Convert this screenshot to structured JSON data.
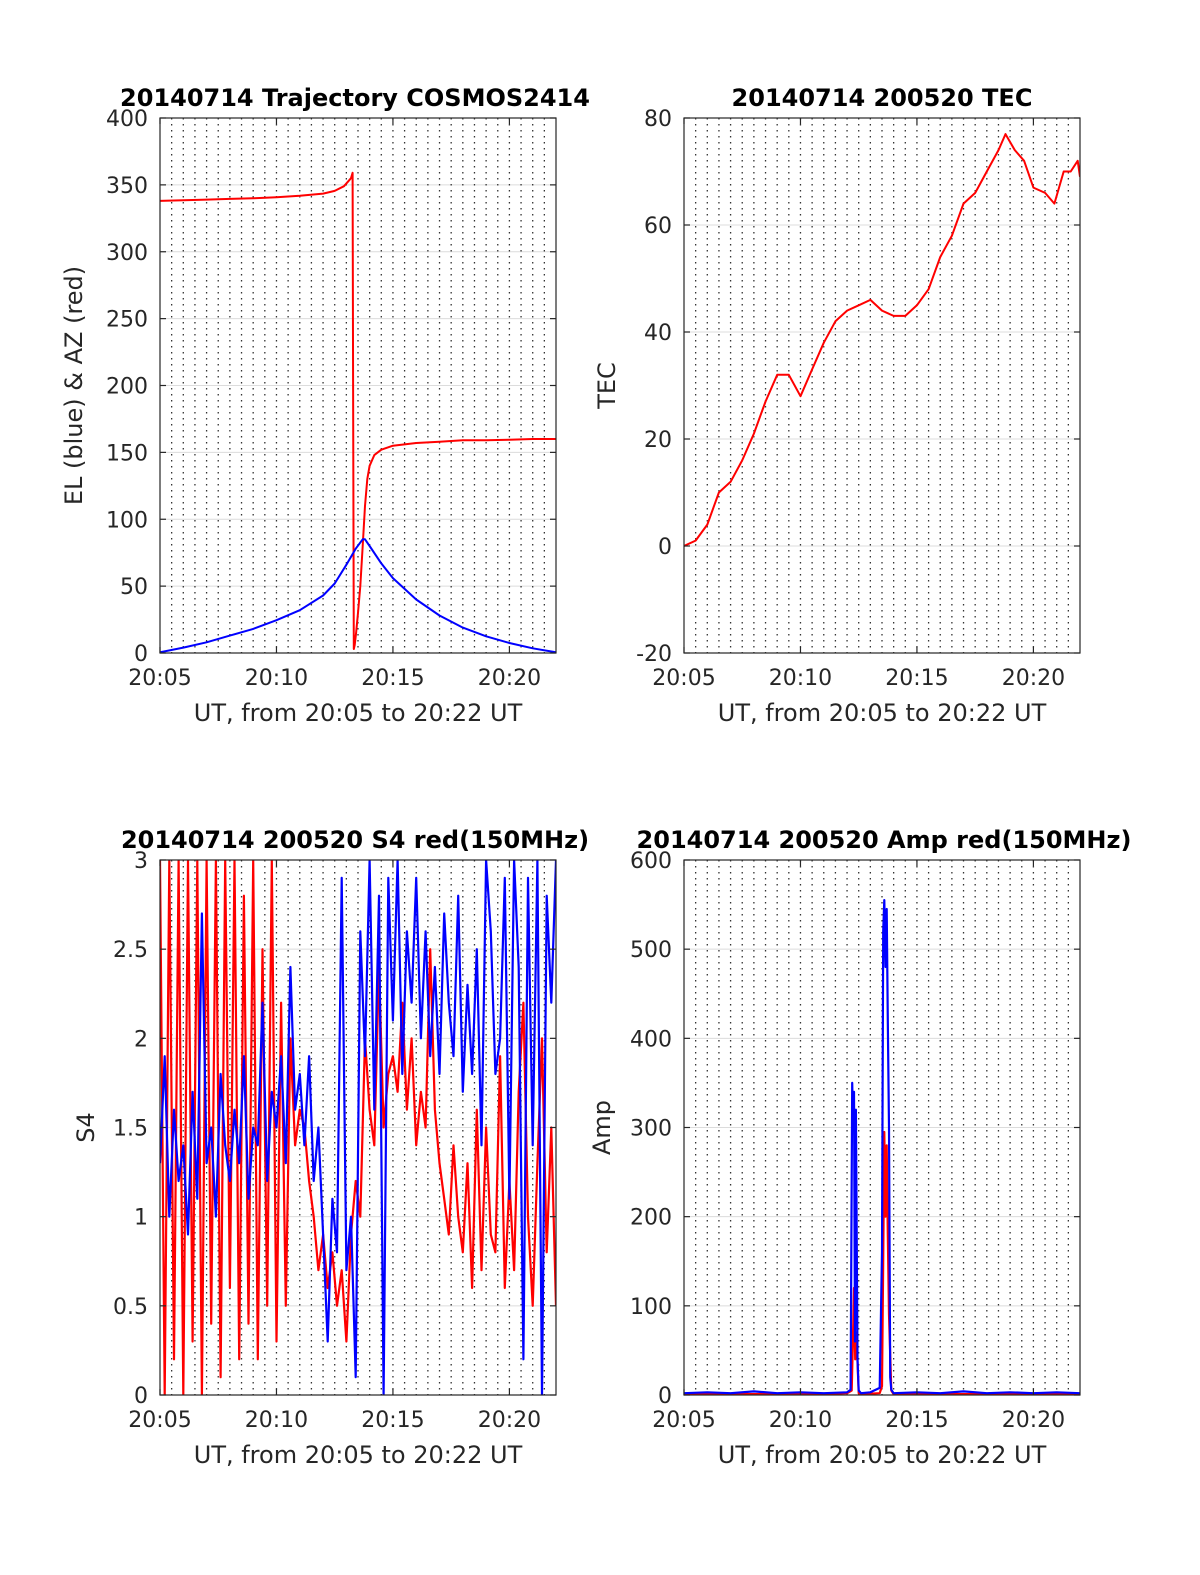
{
  "chart_data": [
    {
      "id": "trajectory",
      "type": "line",
      "title": "20140714 Trajectory COSMOS2414",
      "xlabel": "UT, from 20:05 to 20:22 UT",
      "ylabel": "EL (blue) & AZ (red)",
      "xlim": [
        5,
        22
      ],
      "ylim": [
        0,
        400
      ],
      "x_ticks": [
        5,
        10,
        15,
        20
      ],
      "x_tick_labels": [
        "20:05",
        "20:10",
        "20:15",
        "20:20"
      ],
      "y_ticks": [
        0,
        50,
        100,
        150,
        200,
        250,
        300,
        350,
        400
      ],
      "y_tick_labels": [
        "0",
        "50",
        "100",
        "150",
        "200",
        "250",
        "300",
        "350",
        "400"
      ],
      "grid": "dotted vertical every 30 s, horizontal at y ticks",
      "series": [
        {
          "name": "AZ",
          "color": "#ff0000",
          "x": [
            5.0,
            6.0,
            7.0,
            8.0,
            9.0,
            10.0,
            11.0,
            12.0,
            12.5,
            12.9,
            13.2,
            13.27,
            13.29,
            13.32,
            13.36,
            13.42,
            13.5,
            13.6,
            13.7,
            13.8,
            13.9,
            14.0,
            14.2,
            14.5,
            15.0,
            16.0,
            17.0,
            18.0,
            19.0,
            20.0,
            21.0,
            22.0
          ],
          "y": [
            338,
            338.5,
            339,
            339.5,
            340,
            340.8,
            341.8,
            343.5,
            345.5,
            349,
            355,
            359,
            200,
            3,
            6,
            15,
            30,
            50,
            80,
            110,
            130,
            140,
            148,
            152,
            155,
            157,
            158,
            159,
            159,
            159.5,
            160,
            160
          ]
        },
        {
          "name": "EL",
          "color": "#0000ff",
          "x": [
            5.0,
            6.0,
            7.0,
            8.0,
            9.0,
            10.0,
            11.0,
            12.0,
            12.5,
            13.0,
            13.4,
            13.7,
            13.8,
            14.0,
            14.5,
            15.0,
            16.0,
            17.0,
            18.0,
            19.0,
            20.0,
            21.0,
            22.0
          ],
          "y": [
            0.5,
            4,
            8,
            13,
            18,
            24.5,
            32,
            43,
            52,
            66,
            78,
            85,
            85,
            80,
            67,
            56,
            40,
            28,
            19,
            12.5,
            7.5,
            3.5,
            0.5
          ]
        }
      ]
    },
    {
      "id": "tec",
      "type": "line",
      "title": "20140714 200520 TEC",
      "xlabel": "UT, from 20:05 to 20:22 UT",
      "ylabel": "TEC",
      "xlim": [
        5,
        22
      ],
      "ylim": [
        -20,
        80
      ],
      "x_ticks": [
        5,
        10,
        15,
        20
      ],
      "x_tick_labels": [
        "20:05",
        "20:10",
        "20:15",
        "20:20"
      ],
      "y_ticks": [
        -20,
        0,
        20,
        40,
        60,
        80
      ],
      "y_tick_labels": [
        "-20",
        "0",
        "20",
        "40",
        "60",
        "80"
      ],
      "grid": "dotted vertical every 30 s, horizontal at y ticks",
      "series": [
        {
          "name": "TEC",
          "color": "#ff0000",
          "x": [
            5.0,
            5.5,
            6.0,
            6.5,
            7.0,
            7.5,
            8.0,
            8.5,
            9.0,
            9.5,
            10.0,
            10.5,
            11.0,
            11.5,
            12.0,
            12.5,
            13.0,
            13.5,
            14.0,
            14.5,
            15.0,
            15.5,
            16.0,
            16.5,
            17.0,
            17.5,
            18.0,
            18.5,
            18.8,
            19.2,
            19.6,
            20.0,
            20.5,
            20.9,
            21.3,
            21.6,
            21.9,
            22.0
          ],
          "y": [
            0,
            1,
            4,
            10,
            12,
            16,
            21,
            27,
            32,
            32,
            28,
            33,
            38,
            42,
            44,
            45,
            46,
            44,
            43,
            43,
            45,
            48,
            54,
            58,
            64,
            66,
            70,
            74,
            77,
            74,
            72,
            67,
            66,
            64,
            70,
            70,
            72,
            69
          ]
        }
      ]
    },
    {
      "id": "s4",
      "type": "line",
      "title": "20140714 200520 S4 red(150MHz)",
      "xlabel": "UT, from 20:05 to 20:22 UT",
      "ylabel": "S4",
      "xlim": [
        5,
        22
      ],
      "ylim": [
        0,
        3
      ],
      "x_ticks": [
        5,
        10,
        15,
        20
      ],
      "x_tick_labels": [
        "20:05",
        "20:10",
        "20:15",
        "20:20"
      ],
      "y_ticks": [
        0,
        0.5,
        1,
        1.5,
        2,
        2.5,
        3
      ],
      "y_tick_labels": [
        "0",
        "0.5",
        "1",
        "1.5",
        "2",
        "2.5",
        "3"
      ],
      "grid": "dotted vertical every 30 s, horizontal at y ticks",
      "series": [
        {
          "name": "red(150MHz)",
          "color": "#ff0000",
          "x": [
            5.0,
            5.2,
            5.4,
            5.6,
            5.8,
            6.0,
            6.2,
            6.4,
            6.6,
            6.8,
            7.0,
            7.2,
            7.4,
            7.6,
            7.8,
            8.0,
            8.2,
            8.4,
            8.6,
            8.8,
            9.0,
            9.2,
            9.4,
            9.6,
            9.8,
            10.0,
            10.2,
            10.4,
            10.6,
            10.8,
            11.0,
            11.2,
            11.4,
            11.6,
            11.8,
            12.0,
            12.2,
            12.4,
            12.6,
            12.8,
            13.0,
            13.2,
            13.4,
            13.6,
            13.8,
            14.0,
            14.2,
            14.4,
            14.6,
            14.8,
            15.0,
            15.2,
            15.4,
            15.6,
            15.8,
            16.0,
            16.2,
            16.4,
            16.6,
            16.8,
            17.0,
            17.2,
            17.4,
            17.6,
            17.8,
            18.0,
            18.2,
            18.4,
            18.6,
            18.8,
            19.0,
            19.2,
            19.4,
            19.6,
            19.8,
            20.0,
            20.2,
            20.4,
            20.6,
            20.8,
            21.0,
            21.2,
            21.4,
            21.6,
            21.8,
            22.0
          ],
          "y": [
            3,
            0,
            3,
            0.2,
            3,
            0,
            3,
            0.3,
            3,
            0,
            3,
            0.4,
            3,
            0.1,
            3,
            0.6,
            3,
            0.2,
            2.8,
            0.4,
            3,
            0.2,
            2.5,
            0.5,
            3,
            0.3,
            2.2,
            0.5,
            2.0,
            1.4,
            1.6,
            1.5,
            1.2,
            1.0,
            0.7,
            0.9,
            0.6,
            0.8,
            0.5,
            0.7,
            0.3,
            0.9,
            1.2,
            1.0,
            2.0,
            1.6,
            1.4,
            2.4,
            1.5,
            1.8,
            1.9,
            1.7,
            2.2,
            1.6,
            2.0,
            1.4,
            1.7,
            1.5,
            2.5,
            1.6,
            1.3,
            1.1,
            0.9,
            1.4,
            1.0,
            0.8,
            1.3,
            0.6,
            1.6,
            0.7,
            1.5,
            0.9,
            0.8,
            1.9,
            0.6,
            1.2,
            0.7,
            1.7,
            2.2,
            1.0,
            0.5,
            1.3,
            2.0,
            0.8,
            1.5,
            0.5
          ]
        },
        {
          "name": "blue",
          "color": "#0000ff",
          "x": [
            5.0,
            5.2,
            5.4,
            5.6,
            5.8,
            6.0,
            6.2,
            6.4,
            6.6,
            6.8,
            7.0,
            7.2,
            7.4,
            7.6,
            7.8,
            8.0,
            8.2,
            8.4,
            8.6,
            8.8,
            9.0,
            9.2,
            9.4,
            9.6,
            9.8,
            10.0,
            10.2,
            10.4,
            10.6,
            10.8,
            11.0,
            11.2,
            11.4,
            11.6,
            11.8,
            12.0,
            12.2,
            12.4,
            12.6,
            12.8,
            13.0,
            13.2,
            13.4,
            13.6,
            13.8,
            14.0,
            14.2,
            14.4,
            14.6,
            14.8,
            15.0,
            15.2,
            15.4,
            15.6,
            15.8,
            16.0,
            16.2,
            16.4,
            16.6,
            16.8,
            17.0,
            17.2,
            17.4,
            17.6,
            17.8,
            18.0,
            18.2,
            18.4,
            18.6,
            18.8,
            19.0,
            19.2,
            19.4,
            19.6,
            19.8,
            20.0,
            20.2,
            20.4,
            20.6,
            20.8,
            21.0,
            21.2,
            21.4,
            21.6,
            21.8,
            22.0
          ],
          "y": [
            1.3,
            1.9,
            1.0,
            1.6,
            1.2,
            1.4,
            0.9,
            1.7,
            1.1,
            2.7,
            1.3,
            1.5,
            1.0,
            1.8,
            1.4,
            1.2,
            1.6,
            1.3,
            1.9,
            1.1,
            1.5,
            1.4,
            2.2,
            1.2,
            1.7,
            1.5,
            1.9,
            1.3,
            2.4,
            1.6,
            1.8,
            1.4,
            1.9,
            1.2,
            1.5,
            0.9,
            0.3,
            1.1,
            0.8,
            2.9,
            0.7,
            1.0,
            0.1,
            2.6,
            1.9,
            3.0,
            1.6,
            2.8,
            0.0,
            2.9,
            2.1,
            3.0,
            1.8,
            2.6,
            2.2,
            2.9,
            2.0,
            2.6,
            1.9,
            2.4,
            1.8,
            2.7,
            2.2,
            1.9,
            2.8,
            1.7,
            2.3,
            1.8,
            2.5,
            1.4,
            3.0,
            2.6,
            1.8,
            2.0,
            2.9,
            1.1,
            3.0,
            2.4,
            0.2,
            2.9,
            1.4,
            3.0,
            0.0,
            2.8,
            2.2,
            3.0
          ]
        }
      ]
    },
    {
      "id": "amp",
      "type": "line",
      "title": "20140714 200520 Amp red(150MHz)",
      "xlabel": "UT, from 20:05 to 20:22 UT",
      "ylabel": "Amp",
      "xlim": [
        5,
        22
      ],
      "ylim": [
        0,
        600
      ],
      "x_ticks": [
        5,
        10,
        15,
        20
      ],
      "x_tick_labels": [
        "20:05",
        "20:10",
        "20:15",
        "20:20"
      ],
      "y_ticks": [
        0,
        100,
        200,
        300,
        400,
        500,
        600
      ],
      "y_tick_labels": [
        "0",
        "100",
        "200",
        "300",
        "400",
        "500",
        "600"
      ],
      "grid": "dotted vertical every 30 s, horizontal at y ticks",
      "series": [
        {
          "name": "red(150MHz)",
          "color": "#ff0000",
          "x": [
            5.0,
            8.0,
            11.0,
            12.0,
            12.2,
            12.25,
            12.3,
            12.35,
            12.4,
            12.5,
            12.6,
            13.4,
            13.5,
            13.55,
            13.6,
            13.65,
            13.7,
            13.75,
            13.8,
            13.9,
            14.0,
            16.0,
            19.0,
            22.0
          ],
          "y": [
            1,
            1,
            1,
            2,
            5,
            60,
            120,
            40,
            70,
            2,
            1,
            2,
            10,
            150,
            295,
            200,
            280,
            180,
            90,
            5,
            1,
            1,
            1,
            1
          ]
        },
        {
          "name": "blue",
          "color": "#0000ff",
          "x": [
            5.0,
            6.0,
            7.0,
            8.0,
            9.0,
            10.0,
            11.0,
            12.0,
            12.15,
            12.22,
            12.26,
            12.3,
            12.34,
            12.38,
            12.45,
            12.5,
            12.6,
            13.0,
            13.4,
            13.5,
            13.55,
            13.6,
            13.65,
            13.7,
            13.75,
            13.8,
            13.85,
            13.9,
            14.0,
            15.0,
            16.0,
            17.0,
            18.0,
            19.0,
            20.0,
            21.0,
            22.0
          ],
          "y": [
            2,
            3,
            2,
            4,
            2,
            3,
            2,
            3,
            6,
            350,
            300,
            340,
            60,
            320,
            40,
            5,
            2,
            3,
            8,
            160,
            520,
            555,
            480,
            545,
            420,
            300,
            20,
            6,
            2,
            3,
            2,
            4,
            2,
            3,
            2,
            3,
            2
          ]
        }
      ]
    }
  ]
}
